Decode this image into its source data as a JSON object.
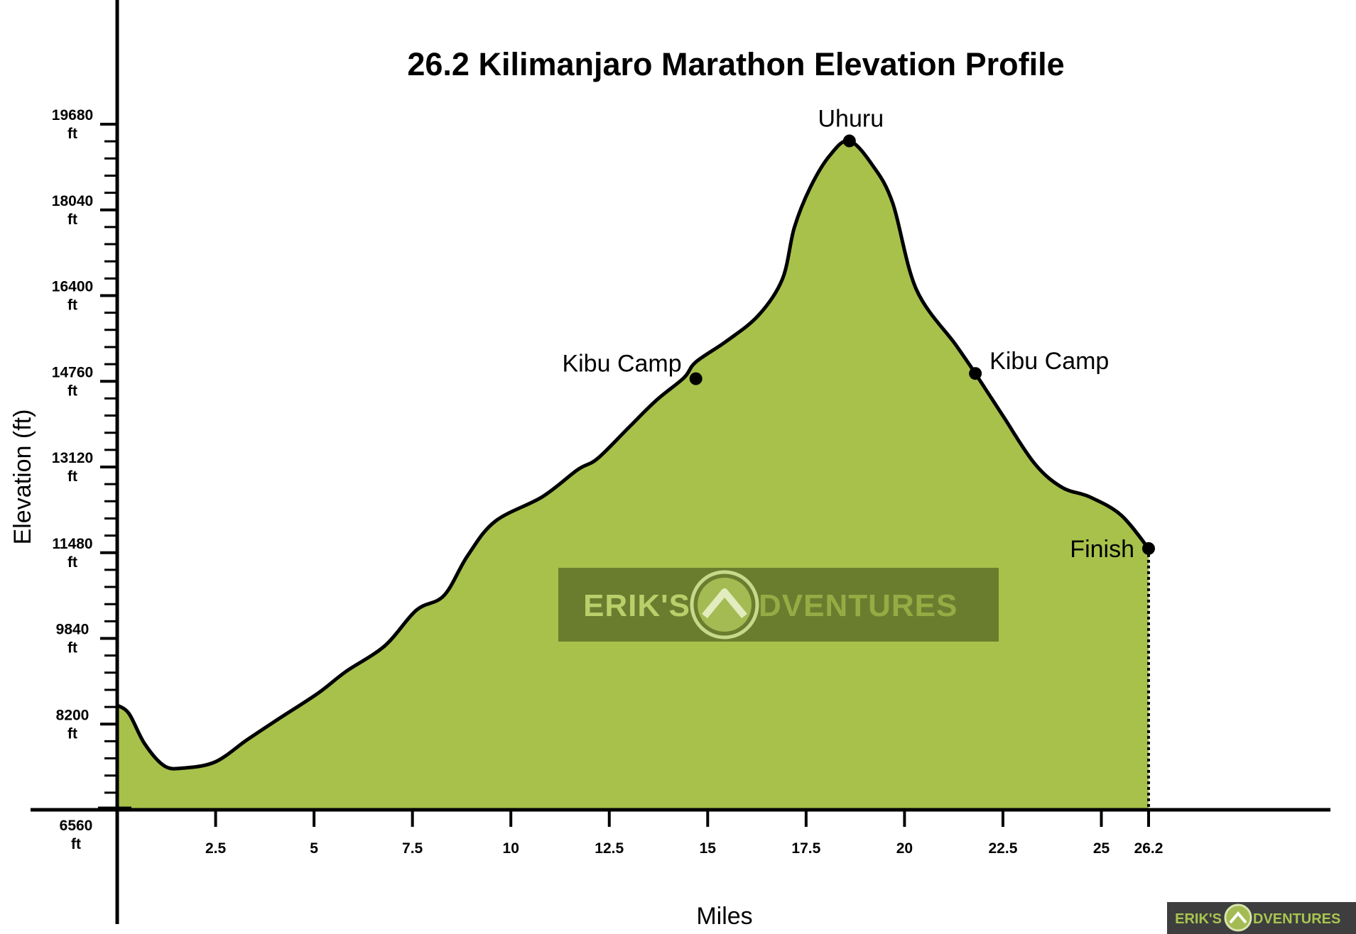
{
  "chart_data": {
    "type": "area",
    "title": "26.2 Kilimanjaro Marathon Elevation Profile",
    "xlabel": "Miles",
    "ylabel": "Elevation (ft)",
    "xlim": [
      0,
      26.2
    ],
    "ylim": [
      6560,
      19680
    ],
    "x_ticks": [
      "2.5",
      "5",
      "7.5",
      "10",
      "12.5",
      "15",
      "17.5",
      "20",
      "22.5",
      "25",
      "26.2"
    ],
    "y_ticks": [
      {
        "value": "19680",
        "unit": "ft"
      },
      {
        "value": "18040",
        "unit": "ft"
      },
      {
        "value": "16400",
        "unit": "ft"
      },
      {
        "value": "14760",
        "unit": "ft"
      },
      {
        "value": "13120",
        "unit": "ft"
      },
      {
        "value": "11480",
        "unit": "ft"
      },
      {
        "value": "9840",
        "unit": "ft"
      },
      {
        "value": "8200",
        "unit": "ft"
      },
      {
        "value": "6560",
        "unit": "ft"
      }
    ],
    "fill_color": "#a7c14b",
    "line_color": "#000000",
    "series": [
      {
        "x": [
          0,
          0.3,
          0.7,
          1.2,
          1.7,
          2.5,
          3.3,
          4.1,
          5.1,
          5.8,
          6.8,
          7.6,
          8.3,
          8.9,
          9.6,
          10.8,
          11.7,
          12.2,
          13,
          13.7,
          14.4,
          14.7,
          15.5,
          16.3,
          16.9,
          17.2,
          17.6,
          18.1,
          18.6,
          19.2,
          19.7,
          20.3,
          21.3,
          21.8,
          22.5,
          23.3,
          24,
          24.7,
          25.5,
          26.2
        ],
        "y": [
          8560,
          8400,
          7820,
          7400,
          7360,
          7480,
          7900,
          8300,
          8790,
          9200,
          9700,
          10380,
          10660,
          11420,
          12080,
          12550,
          13070,
          13280,
          13880,
          14400,
          14830,
          15130,
          15540,
          16030,
          16720,
          17700,
          18460,
          19080,
          19360,
          18880,
          18170,
          16520,
          15460,
          14910,
          14100,
          13190,
          12730,
          12550,
          12200,
          11560
        ]
      }
    ],
    "annotations": [
      {
        "label": "Kibu Camp",
        "x": 14.7,
        "y": 14810,
        "label_side": "left"
      },
      {
        "label": "Uhuru",
        "x": 18.6,
        "y": 19360,
        "label_side": "top"
      },
      {
        "label": "Kibu Camp",
        "x": 21.8,
        "y": 14910,
        "label_side": "right"
      },
      {
        "label": "Finish",
        "x": 26.2,
        "y": 11560,
        "label_side": "left"
      }
    ],
    "grid": false,
    "legend": "none"
  },
  "watermark": {
    "text_left": "ERIK'S",
    "text_right": "DVENTURES",
    "footer_left": "ERIK'S",
    "footer_right": "DVENTURES"
  }
}
